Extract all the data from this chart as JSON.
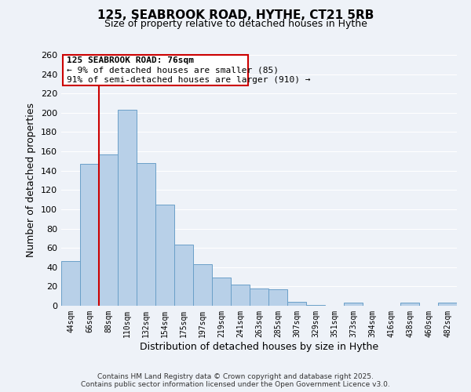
{
  "title": "125, SEABROOK ROAD, HYTHE, CT21 5RB",
  "subtitle": "Size of property relative to detached houses in Hythe",
  "xlabel": "Distribution of detached houses by size in Hythe",
  "ylabel": "Number of detached properties",
  "bar_labels": [
    "44sqm",
    "66sqm",
    "88sqm",
    "110sqm",
    "132sqm",
    "154sqm",
    "175sqm",
    "197sqm",
    "219sqm",
    "241sqm",
    "263sqm",
    "285sqm",
    "307sqm",
    "329sqm",
    "351sqm",
    "373sqm",
    "394sqm",
    "416sqm",
    "438sqm",
    "460sqm",
    "482sqm"
  ],
  "bar_values": [
    46,
    147,
    157,
    203,
    148,
    105,
    63,
    43,
    29,
    22,
    18,
    17,
    4,
    1,
    0,
    3,
    0,
    0,
    3,
    0,
    3
  ],
  "bar_color": "#b8d0e8",
  "bar_edge_color": "#6aa0c8",
  "ylim": [
    0,
    260
  ],
  "yticks": [
    0,
    20,
    40,
    60,
    80,
    100,
    120,
    140,
    160,
    180,
    200,
    220,
    240,
    260
  ],
  "vline_x": 1.5,
  "vline_color": "#cc0000",
  "annotation_title": "125 SEABROOK ROAD: 76sqm",
  "annotation_line1": "← 9% of detached houses are smaller (85)",
  "annotation_line2": "91% of semi-detached houses are larger (910) →",
  "footer1": "Contains HM Land Registry data © Crown copyright and database right 2025.",
  "footer2": "Contains public sector information licensed under the Open Government Licence v3.0.",
  "background_color": "#eef2f8",
  "annotation_box_color": "#ffffff",
  "annotation_box_edge": "#cc0000",
  "grid_color": "#ffffff"
}
